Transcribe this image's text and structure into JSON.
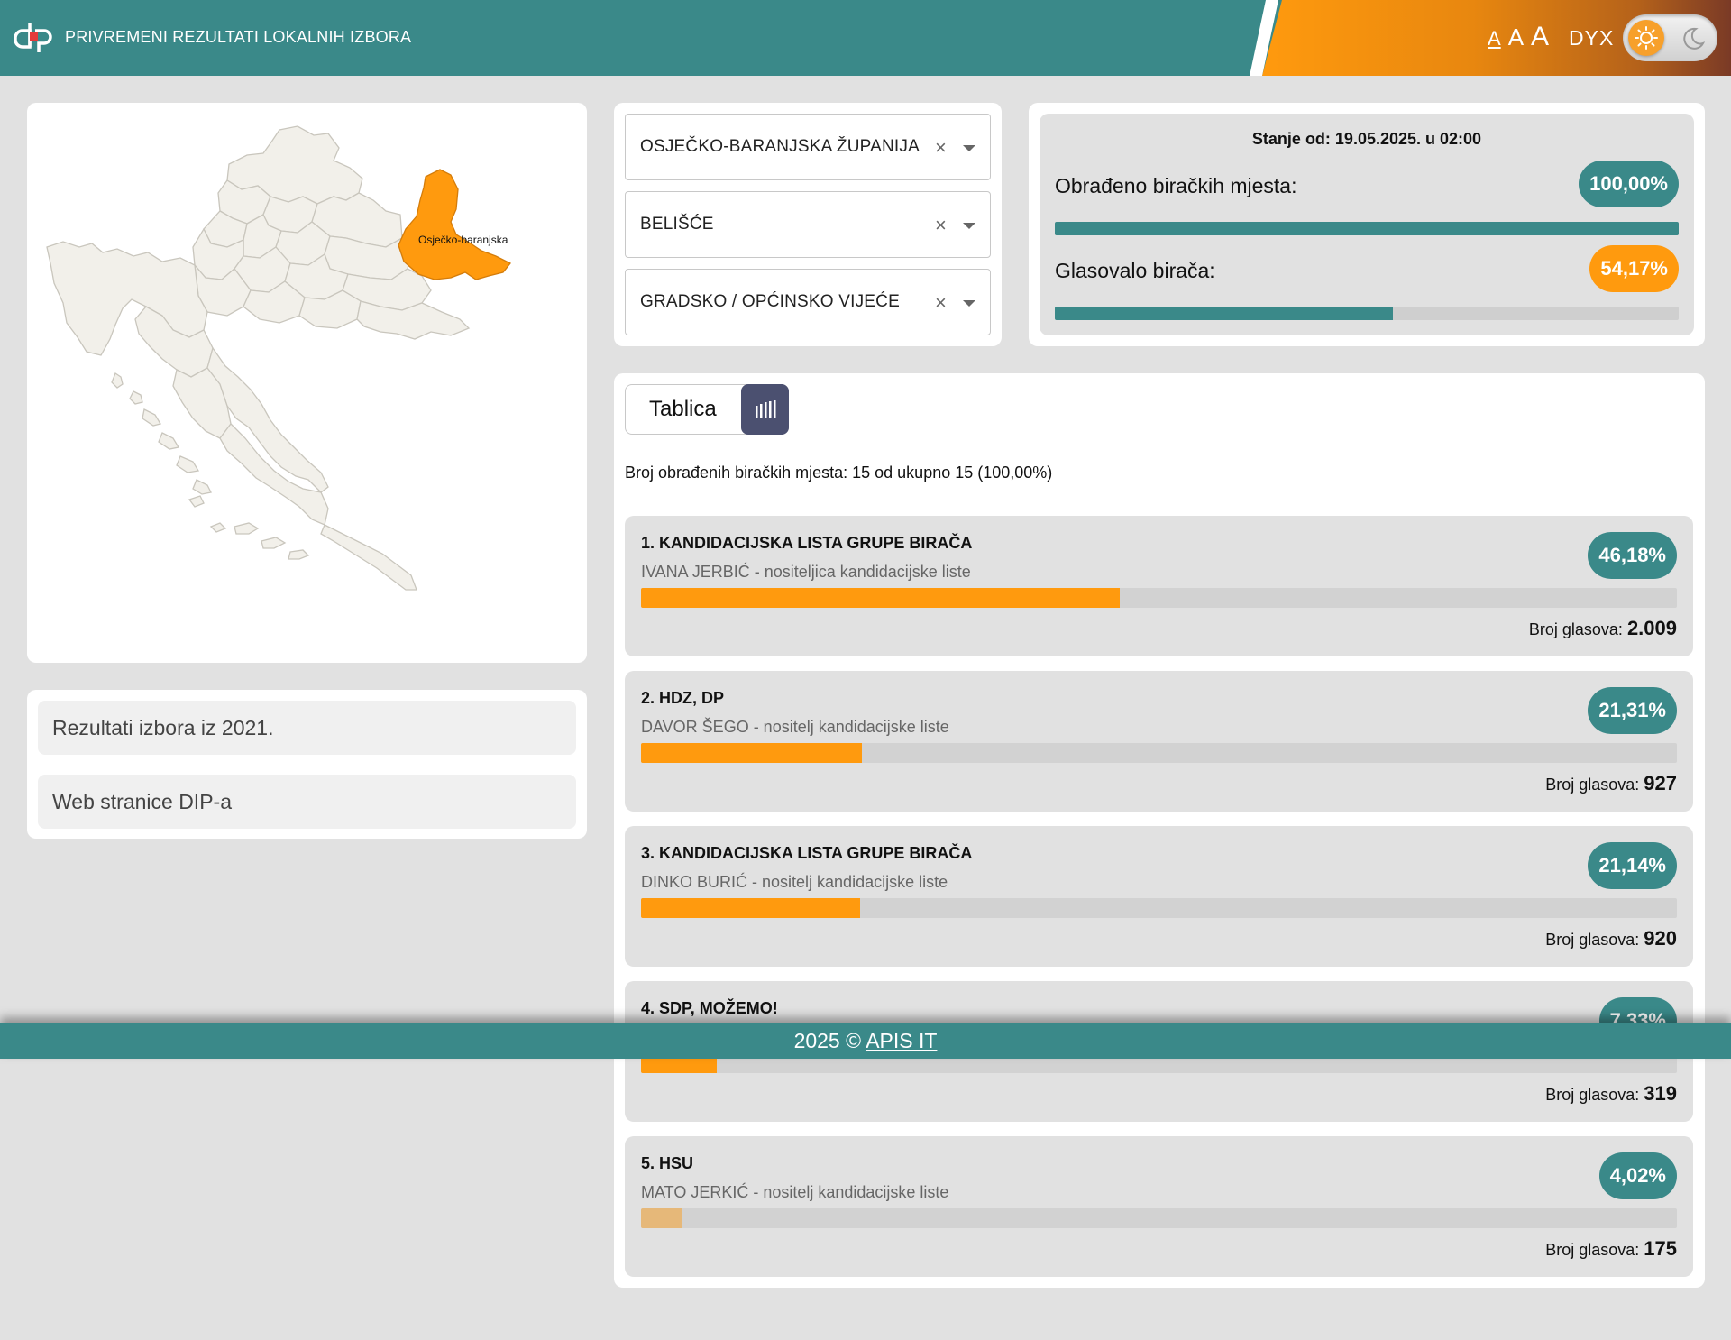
{
  "header": {
    "title": "PRIVREMENI REZULTATI LOKALNIH IZBORA",
    "font_small": "A",
    "font_medium": "A",
    "font_large": "A",
    "dyslexic": "DYX",
    "theme_icons": [
      "sun-icon",
      "moon-icon"
    ]
  },
  "map": {
    "highlighted_label": "Osječko-baranjska"
  },
  "links": [
    {
      "label": "Rezultati izbora iz 2021."
    },
    {
      "label": "Web stranice DIP-a"
    }
  ],
  "filters": {
    "county": "OSJEČKO-BARANJSKA ŽUPANIJA",
    "municipality": "BELIŠĆE",
    "body": "GRADSKO / OPĆINSKO VIJEĆE",
    "clear_symbol": "×"
  },
  "status": {
    "date": "Stanje od: 19.05.2025. u 02:00",
    "processed_label": "Obrađeno biračkih mjesta:",
    "processed_value": "100,00%",
    "processed_fraction": 1.0,
    "turnout_label": "Glasovalo birača:",
    "turnout_value": "54,17%",
    "turnout_fraction": 0.5417
  },
  "results": {
    "view_label": "Tablica",
    "count_text": "Broj obrađenih biračkih mjesta: 15 od ukupno 15 (100,00%)",
    "votes_label": "Broj glasova:",
    "parties": [
      {
        "name": "1. KANDIDACIJSKA LISTA GRUPE BIRAČA",
        "leader": "IVANA JERBIĆ - nositeljica kandidacijske liste",
        "percent": "46,18%",
        "fraction": 0.4618,
        "votes": "2.009"
      },
      {
        "name": "2. HDZ, DP",
        "leader": "DAVOR ŠEGO - nositelj kandidacijske liste",
        "percent": "21,31%",
        "fraction": 0.2131,
        "votes": "927"
      },
      {
        "name": "3. KANDIDACIJSKA LISTA GRUPE BIRAČA",
        "leader": "DINKO BURIĆ - nositelj kandidacijske liste",
        "percent": "21,14%",
        "fraction": 0.2114,
        "votes": "920"
      },
      {
        "name": "4. SDP, MOŽEMO!",
        "leader": "",
        "percent": "7,33%",
        "fraction": 0.0733,
        "votes": "319"
      },
      {
        "name": "5. HSU",
        "leader": "MATO JERKIĆ - nositelj kandidacijske liste",
        "percent": "4,02%",
        "fraction": 0.0402,
        "votes": "175",
        "faded": true
      }
    ]
  },
  "footer": {
    "text": "2025 © ",
    "link": "APIS IT"
  },
  "colors": {
    "teal": "#3a8989",
    "orange": "#ff9a0e",
    "background": "#e1e1e1",
    "toggle_dark": "#4b5070"
  }
}
